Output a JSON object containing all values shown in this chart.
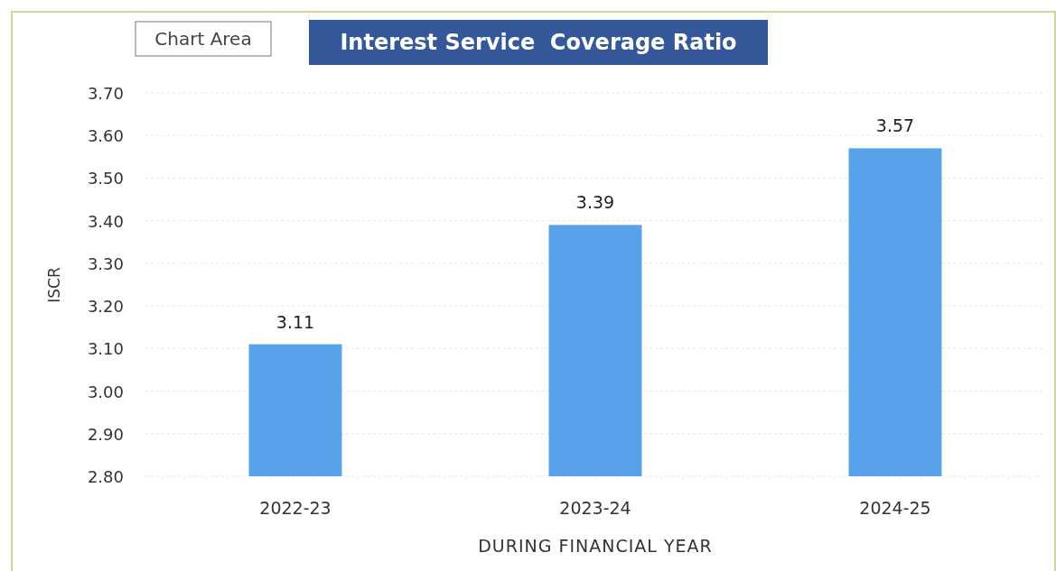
{
  "chart_data": {
    "type": "bar",
    "title": "Interest Service  Coverage Ratio",
    "categories": [
      "2022-23",
      "2023-24",
      "2024-25"
    ],
    "values": [
      3.11,
      3.39,
      3.57
    ],
    "color": "#58a2ea",
    "ylim": [
      2.8,
      3.7
    ],
    "yticks": [
      {
        "value": 2.8,
        "label": "2.80"
      },
      {
        "value": 2.9,
        "label": "2.90"
      },
      {
        "value": 3.0,
        "label": "3.00"
      },
      {
        "value": 3.1,
        "label": "3.10"
      },
      {
        "value": 3.2,
        "label": "3.20"
      },
      {
        "value": 3.3,
        "label": "3.30"
      },
      {
        "value": 3.4,
        "label": "3.40"
      },
      {
        "value": 3.5,
        "label": "3.50"
      },
      {
        "value": 3.6,
        "label": "3.60"
      },
      {
        "value": 3.7,
        "label": "3.70"
      }
    ],
    "xlabel": "DURING FINANCIAL YEAR",
    "ylabel": "ISCR",
    "annotations": [
      "Chart Area"
    ],
    "data_labels": true,
    "grid": "y"
  }
}
